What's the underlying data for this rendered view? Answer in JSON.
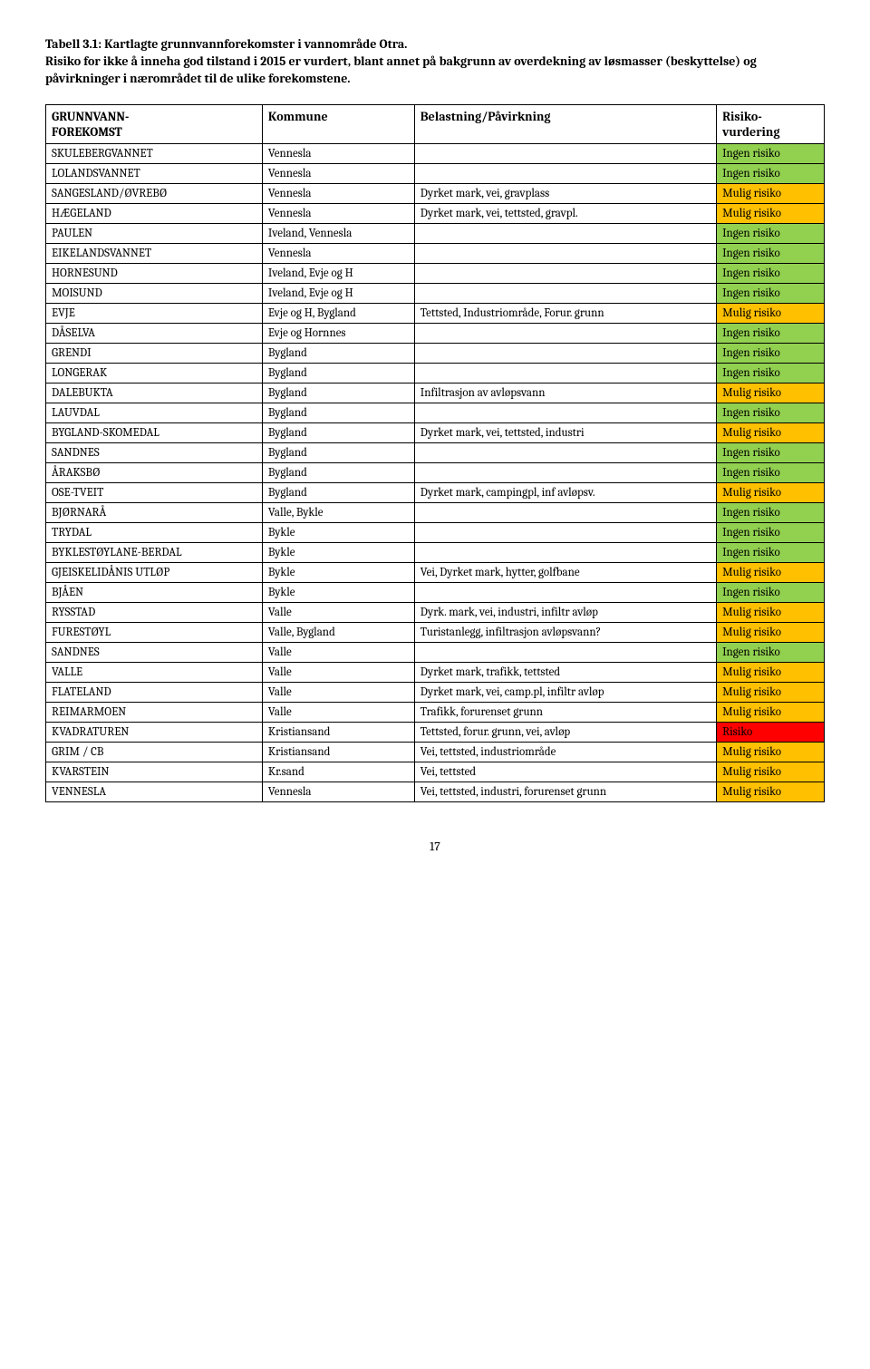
{
  "title": "Tabell 3.1: Kartlagte grunnvannforekomster i vannområde Otra.",
  "description": "Risiko for ikke å inneha god tilstand i 2015 er vurdert, blant annet på bakgrunn av overdekning av løsmasser (beskyttelse) og påvirkninger i nærområdet til de ulike forekomstene.",
  "headers": {
    "col1": "GRUNNVANN-FOREKOMST",
    "col2": "Kommune",
    "col3": "Belastning/Påvirkning",
    "col4": "Risiko-vurdering"
  },
  "colors": {
    "none": "#92d050",
    "maybe": "#ffc000",
    "high": "#ff0000",
    "border": "#000000",
    "text": "#000000",
    "bg": "#ffffff"
  },
  "rows": [
    {
      "name": "SKULEBERGVANNET",
      "kommune": "Vennesla",
      "bel": "",
      "risk": "Ingen risiko",
      "riskClass": "risk-none"
    },
    {
      "name": "LOLANDSVANNET",
      "kommune": "Vennesla",
      "bel": "",
      "risk": "Ingen risiko",
      "riskClass": "risk-none"
    },
    {
      "name": "SANGESLAND/ØVREBØ",
      "kommune": "Vennesla",
      "bel": "Dyrket mark, vei, gravplass",
      "risk": "Mulig risiko",
      "riskClass": "risk-maybe"
    },
    {
      "name": "HÆGELAND",
      "kommune": "Vennesla",
      "bel": "Dyrket mark, vei, tettsted, gravpl.",
      "risk": "Mulig risiko",
      "riskClass": "risk-maybe"
    },
    {
      "name": "PAULEN",
      "kommune": "Iveland, Vennesla",
      "bel": "",
      "risk": "Ingen risiko",
      "riskClass": "risk-none"
    },
    {
      "name": "EIKELANDSVANNET",
      "kommune": "Vennesla",
      "bel": "",
      "risk": "Ingen risiko",
      "riskClass": "risk-none"
    },
    {
      "name": "HORNESUND",
      "kommune": "Iveland, Evje og H",
      "bel": "",
      "risk": "Ingen risiko",
      "riskClass": "risk-none"
    },
    {
      "name": "MOISUND",
      "kommune": "Iveland, Evje og H",
      "bel": "",
      "risk": "Ingen risiko",
      "riskClass": "risk-none"
    },
    {
      "name": "EVJE",
      "kommune": "Evje og H, Bygland",
      "bel": "Tettsted, Industriområde, Forur. grunn",
      "risk": "Mulig risiko",
      "riskClass": "risk-maybe"
    },
    {
      "name": "DÅSELVA",
      "kommune": "Evje og Hornnes",
      "bel": "",
      "risk": "Ingen risiko",
      "riskClass": "risk-none"
    },
    {
      "name": "GRENDI",
      "kommune": "Bygland",
      "bel": "",
      "risk": "Ingen risiko",
      "riskClass": "risk-none"
    },
    {
      "name": "LONGERAK",
      "kommune": "Bygland",
      "bel": "",
      "risk": "Ingen risiko",
      "riskClass": "risk-none"
    },
    {
      "name": "DALEBUKTA",
      "kommune": "Bygland",
      "bel": "Infiltrasjon av avløpsvann",
      "risk": "Mulig risiko",
      "riskClass": "risk-maybe"
    },
    {
      "name": "LAUVDAL",
      "kommune": "Bygland",
      "bel": "",
      "risk": "Ingen risiko",
      "riskClass": "risk-none"
    },
    {
      "name": "BYGLAND-SKOMEDAL",
      "kommune": "Bygland",
      "bel": "Dyrket mark, vei, tettsted, industri",
      "risk": "Mulig risiko",
      "riskClass": "risk-maybe"
    },
    {
      "name": "SANDNES",
      "kommune": "Bygland",
      "bel": "",
      "risk": "Ingen risiko",
      "riskClass": "risk-none"
    },
    {
      "name": "ÅRAKSBØ",
      "kommune": "Bygland",
      "bel": "",
      "risk": "Ingen risiko",
      "riskClass": "risk-none"
    },
    {
      "name": "OSE-TVEIT",
      "kommune": "Bygland",
      "bel": "Dyrket mark, campingpl, inf avløpsv.",
      "risk": "Mulig risiko",
      "riskClass": "risk-maybe"
    },
    {
      "name": "BJØRNARÅ",
      "kommune": "Valle, Bykle",
      "bel": "",
      "risk": "Ingen risiko",
      "riskClass": "risk-none"
    },
    {
      "name": "TRYDAL",
      "kommune": "Bykle",
      "bel": "",
      "risk": "Ingen risiko",
      "riskClass": "risk-none"
    },
    {
      "name": "BYKLESTØYLANE-BERDAL",
      "kommune": "Bykle",
      "bel": "",
      "risk": "Ingen risiko",
      "riskClass": "risk-none"
    },
    {
      "name": "GJEISKELIDÅNIS UTLØP",
      "kommune": "Bykle",
      "bel": "Vei, Dyrket mark, hytter, golfbane",
      "risk": "Mulig risiko",
      "riskClass": "risk-maybe"
    },
    {
      "name": "BJÅEN",
      "kommune": "Bykle",
      "bel": "",
      "risk": "Ingen risiko",
      "riskClass": "risk-none"
    },
    {
      "name": "RYSSTAD",
      "kommune": "Valle",
      "bel": "Dyrk. mark, vei, industri, infiltr avløp",
      "risk": "Mulig risiko",
      "riskClass": "risk-maybe"
    },
    {
      "name": "FURESTØYL",
      "kommune": "Valle, Bygland",
      "bel": "Turistanlegg, infiltrasjon avløpsvann?",
      "risk": "Mulig risiko",
      "riskClass": "risk-maybe"
    },
    {
      "name": "SANDNES",
      "kommune": "Valle",
      "bel": "",
      "risk": "Ingen risiko",
      "riskClass": "risk-none"
    },
    {
      "name": "VALLE",
      "kommune": "Valle",
      "bel": "Dyrket mark, trafikk, tettsted",
      "risk": "Mulig risiko",
      "riskClass": "risk-maybe"
    },
    {
      "name": "FLATELAND",
      "kommune": "Valle",
      "bel": "Dyrket mark, vei, camp.pl, infiltr avløp",
      "risk": "Mulig risiko",
      "riskClass": "risk-maybe"
    },
    {
      "name": "REIMARMOEN",
      "kommune": "Valle",
      "bel": "Trafikk, forurenset grunn",
      "risk": "Mulig risiko",
      "riskClass": "risk-maybe"
    },
    {
      "name": "KVADRATUREN",
      "kommune": "Kristiansand",
      "bel": "Tettsted, forur. grunn, vei, avløp",
      "risk": "Risiko",
      "riskClass": "risk-high"
    },
    {
      "name": "GRIM / CB",
      "kommune": "Kristiansand",
      "bel": "Vei, tettsted, industriområde",
      "risk": "Mulig risiko",
      "riskClass": "risk-maybe"
    },
    {
      "name": "KVARSTEIN",
      "kommune": "Kr.sand",
      "bel": "Vei, tettsted",
      "risk": "Mulig risiko",
      "riskClass": "risk-maybe"
    },
    {
      "name": "VENNESLA",
      "kommune": "Vennesla",
      "bel": "Vei, tettsted, industri, forurenset grunn",
      "risk": "Mulig risiko",
      "riskClass": "risk-maybe"
    }
  ],
  "pageNumber": "17"
}
